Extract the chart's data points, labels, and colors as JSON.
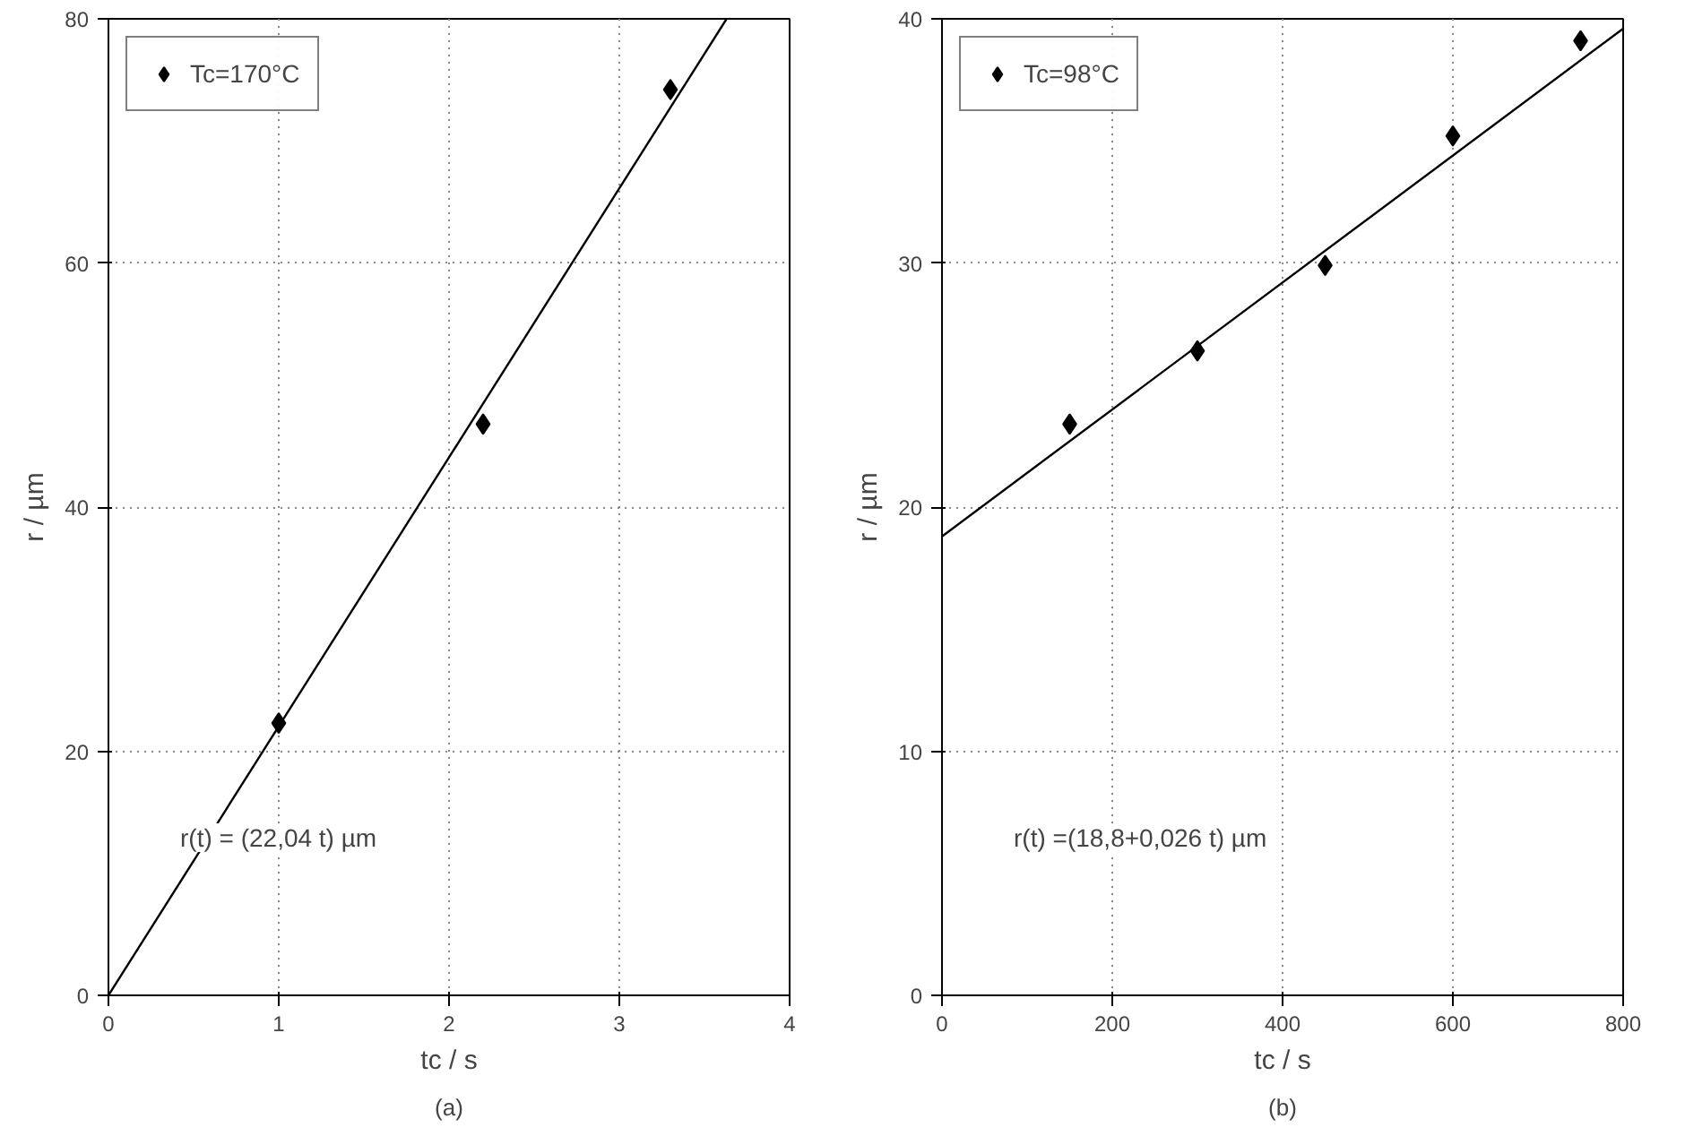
{
  "chart_data": [
    {
      "type": "scatter",
      "xlabel": "tc / s",
      "ylabel": "r / µm",
      "xlim": [
        0,
        4
      ],
      "ylim": [
        0,
        80
      ],
      "xticks": [
        0,
        1,
        2,
        3,
        4
      ],
      "yticks": [
        0,
        20,
        40,
        60,
        80
      ],
      "grid": true,
      "legend": "top left",
      "marker": "diamond",
      "series": [
        {
          "name": "Tc=170°C",
          "color": "#000000",
          "x": [
            1,
            2.2,
            3.3
          ],
          "values": [
            22.3,
            46.8,
            74.2
          ]
        },
        {
          "type": "line",
          "color": "#000000",
          "x": [
            0,
            3.63
          ],
          "values": [
            0,
            80
          ],
          "marker": "none"
        }
      ],
      "annotations": [
        "r(t) = (22,04 t) µm",
        "(a)"
      ]
    },
    {
      "type": "scatter",
      "xlabel": "tc / s",
      "ylabel": "r / µm",
      "xlim": [
        0,
        800
      ],
      "ylim": [
        0,
        40
      ],
      "xticks": [
        0,
        200,
        400,
        600,
        800
      ],
      "yticks": [
        0,
        10,
        20,
        30,
        40
      ],
      "grid": true,
      "legend": "top left",
      "marker": "diamond",
      "series": [
        {
          "name": "Tc=98°C",
          "color": "#000000",
          "x": [
            150,
            300,
            450,
            600,
            750
          ],
          "values": [
            23.4,
            26.4,
            29.9,
            35.2,
            39.1
          ]
        },
        {
          "type": "line",
          "color": "#000000",
          "x": [
            0,
            800
          ],
          "values": [
            18.8,
            39.6
          ],
          "marker": "none"
        }
      ],
      "annotations": [
        "r(t) =(18,8+0,026 t) µm",
        "(b)"
      ]
    }
  ]
}
